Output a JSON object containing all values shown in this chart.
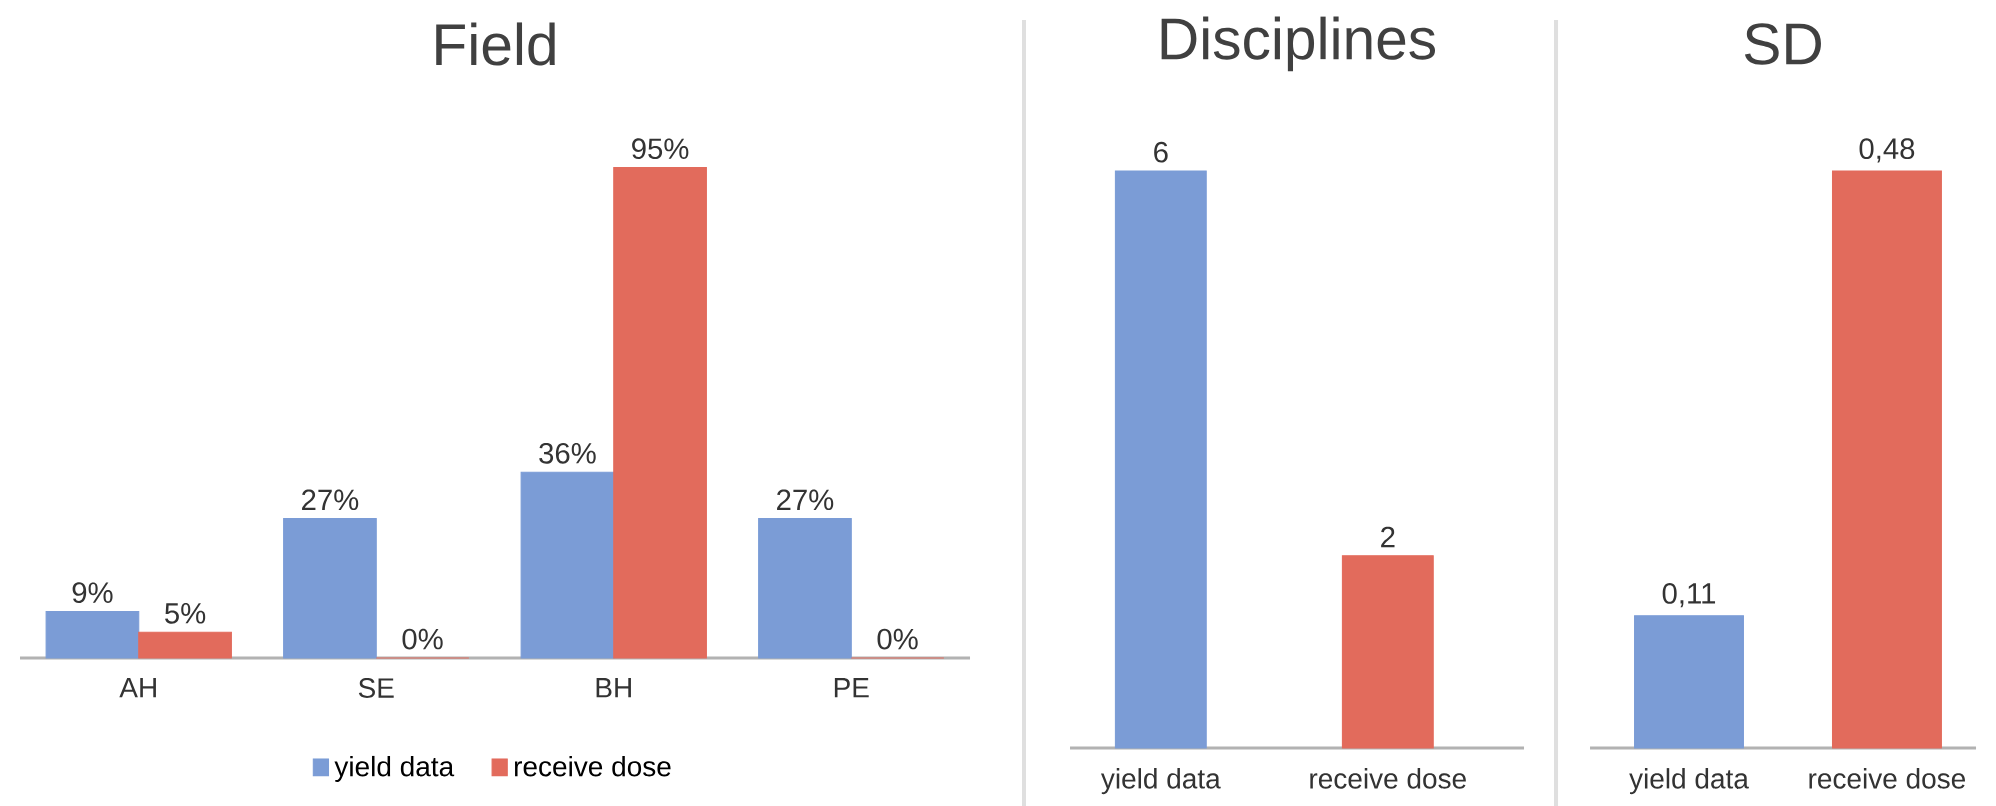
{
  "chart_data": [
    {
      "type": "bar",
      "title": "Field",
      "categories": [
        "AH",
        "SE",
        "BH",
        "PE"
      ],
      "series": [
        {
          "name": "yield data",
          "color": "#7b9cd6",
          "values": [
            9,
            27,
            36,
            27
          ],
          "value_labels": [
            "9%",
            "27%",
            "36%",
            "27%"
          ]
        },
        {
          "name": "receive dose",
          "color": "#e26b5c",
          "values": [
            5,
            0,
            95,
            0
          ],
          "value_labels": [
            "5%",
            "0%",
            "95%",
            "0%"
          ]
        }
      ],
      "tick_labels": "x",
      "legend": "bottom"
    },
    {
      "type": "bar",
      "title": "Disciplines",
      "categories": [
        "yield data",
        "receive dose"
      ],
      "values": [
        6,
        2
      ],
      "colors": [
        "#7b9cd6",
        "#e26b5c"
      ],
      "value_labels": [
        "6",
        "2"
      ],
      "tick_labels": "x"
    },
    {
      "type": "bar",
      "title": "SD",
      "categories": [
        "yield data",
        "receive dose"
      ],
      "values": [
        0.11,
        0.48
      ],
      "colors": [
        "#7b9cd6",
        "#e26b5c"
      ],
      "value_labels": [
        "0,11",
        "0,48"
      ],
      "tick_labels": "x"
    }
  ]
}
